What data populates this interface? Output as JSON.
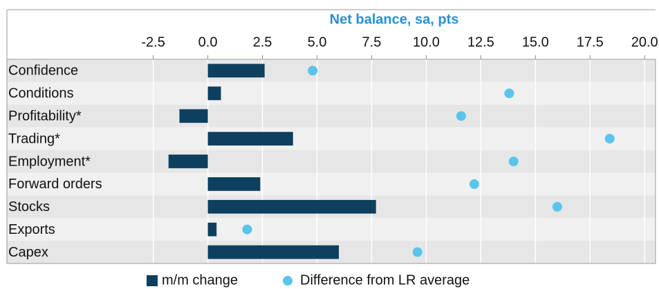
{
  "chart_data": {
    "type": "bar",
    "orientation": "horizontal",
    "title": "Net balance, sa, pts",
    "categories": [
      "Confidence",
      "Conditions",
      "Profitability*",
      "Trading*",
      "Employment*",
      "Forward orders",
      "Stocks",
      "Exports",
      "Capex"
    ],
    "series": [
      {
        "name": "m/m change",
        "type": "bar",
        "color": "#0d3f5f",
        "values": [
          2.6,
          0.6,
          -1.3,
          3.9,
          -1.8,
          2.4,
          7.7,
          0.4,
          6.0
        ]
      },
      {
        "name": "Difference from LR average",
        "type": "dot",
        "color": "#5bc4ea",
        "values": [
          4.8,
          13.8,
          11.6,
          18.4,
          14.0,
          12.2,
          16.0,
          1.8,
          9.6
        ]
      }
    ],
    "xlim": [
      -9.2,
      20.5
    ],
    "xticks": [
      -2.5,
      {
        "value": 0,
        "label": "0.0"
      },
      2.5,
      {
        "value": 5,
        "label": "5.0"
      },
      7.5,
      {
        "value": 10,
        "label": "10.0"
      },
      12.5,
      {
        "value": 15,
        "label": "15.0"
      },
      17.5,
      {
        "value": 20,
        "label": "20.0"
      }
    ],
    "grid": true,
    "legend": "bottom"
  }
}
